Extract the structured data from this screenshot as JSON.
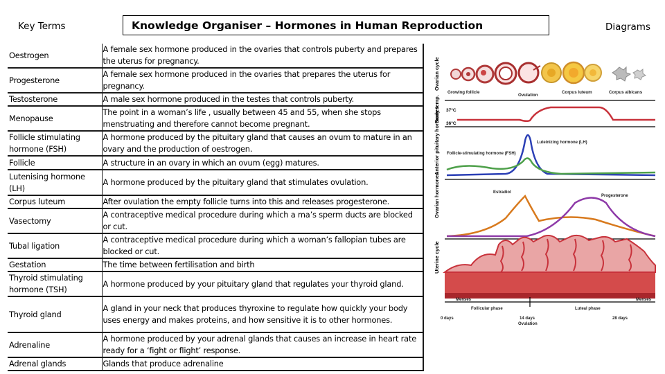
{
  "header": {
    "key_terms": "Key Terms",
    "title": "Knowledge Organiser – Hormones in Human Reproduction",
    "diagrams": "Diagrams"
  },
  "terms": [
    {
      "term": "Oestrogen",
      "definition": "A female sex hormone produced in the ovaries that controls puberty and prepares the uterus for pregnancy."
    },
    {
      "term": "Progesterone",
      "definition": "A female sex hormone produced in the ovaries that prepares the uterus for pregnancy."
    },
    {
      "term": "Testosterone",
      "definition": "A male sex hormone produced in the testes that controls puberty."
    },
    {
      "term": "Menopause",
      "definition": "The point in a woman’s life , usually between 45 and 55, when she stops menstruating and therefore cannot become pregnant."
    },
    {
      "term": "Follicle stimulating hormone (FSH)",
      "definition": "A hormone produced by the pituitary gland that causes an ovum to mature in an ovary and the production of oestrogen."
    },
    {
      "term": "Follicle",
      "definition": "A structure in an ovary in which an ovum (egg) matures."
    },
    {
      "term": "Lutenising hormone (LH)",
      "definition": "A hormone produced by the pituitary gland that stimulates ovulation."
    },
    {
      "term": "Corpus luteum",
      "definition": "After ovulation the empty follicle turns into this and releases progesterone."
    },
    {
      "term": "Vasectomy",
      "definition": "A contraceptive medical procedure during which a ma’s sperm ducts are blocked or cut."
    },
    {
      "term": "Tubal ligation",
      "definition": "A contraceptive medical procedure during which a woman’s fallopian tubes are blocked or cut."
    },
    {
      "term": "Gestation",
      "definition": "The time between fertilisation and birth"
    },
    {
      "term": "Thyroid stimulating hormone (TSH)",
      "definition": "A hormone produced by your pituitary gland that regulates your thyroid gland."
    },
    {
      "term": "Thyroid gland",
      "definition": "A gland in your neck that produces thyroxine to regulate how quickly your body uses energy and makes proteins, and how sensitive it is to other hormones."
    },
    {
      "term": "Adrenaline",
      "definition": "A hormone produced by your adrenal glands that causes an increase in heart rate ready for a ‘fight or flight’ response."
    },
    {
      "term": "Adrenal glands",
      "definition": "Glands that produce adrenaline"
    }
  ],
  "diagram": {
    "row_labels": {
      "ovarian_cycle": "Ovarian cycle",
      "body_temp": "Body temp.",
      "pituitary": "Anterior pituitary hormones",
      "ovarian_hormones": "Ovarian hormones",
      "uterine": "Uterine cycle"
    },
    "stages": [
      "Growing follicle",
      "Ovulation",
      "Corpus luteum",
      "Corpus albicans"
    ],
    "temps": [
      "37°C",
      "36°C"
    ],
    "hormones": {
      "lh": "Luteinizing hormone (LH)",
      "fsh": "Follicle-stimulating hormone (FSH)",
      "estradiol": "Estradiol",
      "progesterone": "Progesterone"
    },
    "phases": {
      "menses": "Menses",
      "follicular": "Follicular phase",
      "luteal": "Luteal phase"
    },
    "days": {
      "d0": "0 days",
      "d14": "14 days",
      "ovulation": "Ovulation",
      "d28": "28 days"
    },
    "colors": {
      "lh": "#2b3fb5",
      "fsh": "#4ea04a",
      "estradiol": "#d87a1e",
      "progesterone": "#8e3aa8",
      "uterus": "#c8323b",
      "temp": "#c8323b"
    }
  }
}
